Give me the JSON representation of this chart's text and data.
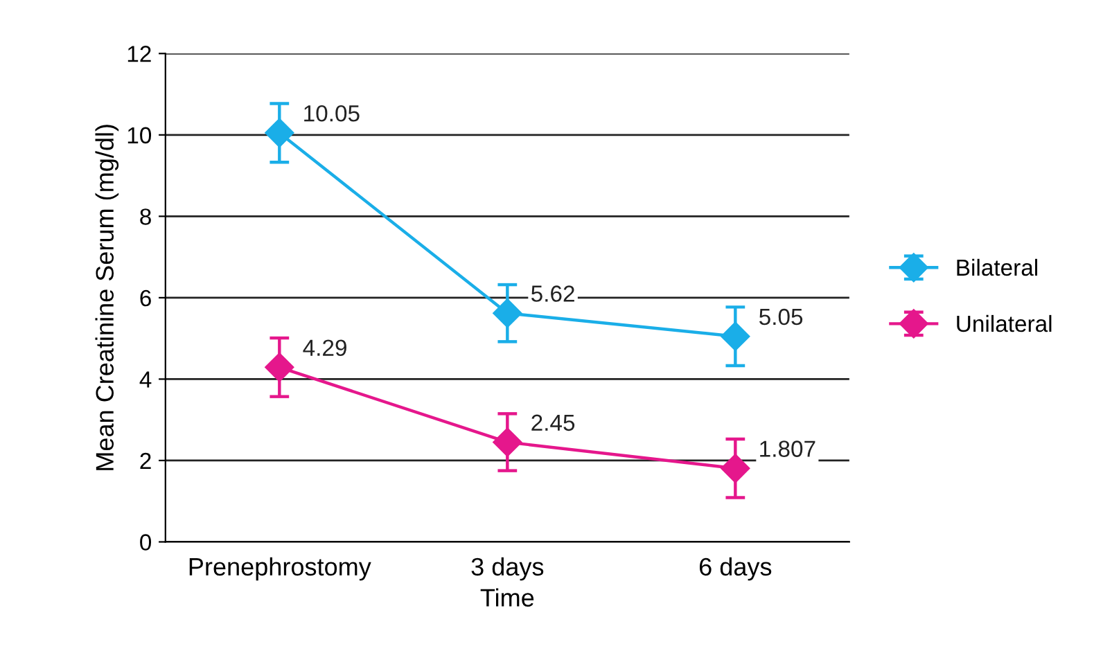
{
  "chart_data": {
    "type": "line",
    "xlabel": "Time",
    "ylabel": "Mean Creatinine Serum (mg/dl)",
    "categories": [
      "Prenephrostomy",
      "3 days",
      "6 days"
    ],
    "series": [
      {
        "name": "Bilateral",
        "color": "#1aaee8",
        "values": [
          10.05,
          5.62,
          5.05
        ],
        "errors": [
          0.72,
          0.7,
          0.72
        ]
      },
      {
        "name": "Unilateral",
        "color": "#e5178c",
        "values": [
          4.29,
          2.45,
          1.807
        ],
        "errors": [
          0.72,
          0.7,
          0.72
        ]
      }
    ],
    "ylim": [
      0,
      12
    ],
    "yticks": [
      0,
      2,
      4,
      6,
      8,
      10,
      12
    ],
    "grid": "y",
    "legend": "right",
    "marker": "diamond",
    "line_style": "solid",
    "data_labels": true
  }
}
